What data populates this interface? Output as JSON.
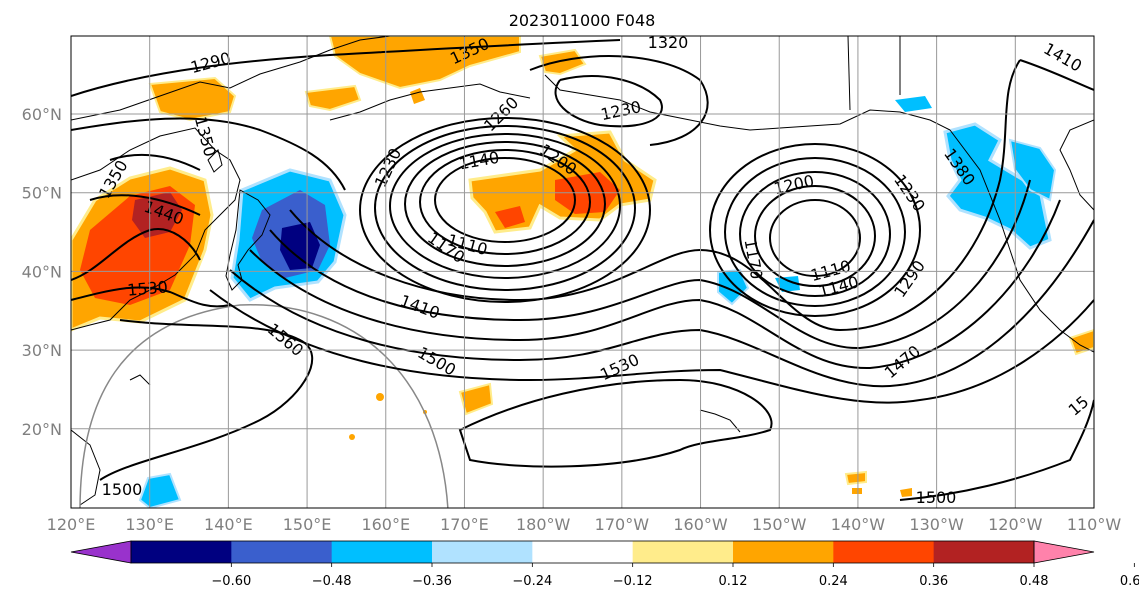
{
  "title": "2023011000 F048",
  "map": {
    "lon_ticks": [
      "120°E",
      "130°E",
      "140°E",
      "150°E",
      "160°E",
      "170°E",
      "180°W",
      "170°W",
      "160°W",
      "150°W",
      "140°W",
      "130°W",
      "120°W",
      "110°W"
    ],
    "lat_ticks": [
      "60°N",
      "50°N",
      "40°N",
      "30°N",
      "20°N"
    ],
    "grid": true,
    "projection": "PlateCarree"
  },
  "colorbar": {
    "colors": [
      "#9932cc",
      "#000080",
      "#3a5fcd",
      "#00bfff",
      "#b0e2ff",
      "#ffffff",
      "#ffec8b",
      "#ffa500",
      "#ff4500",
      "#b22222",
      "#ff82ab"
    ],
    "ticks": [
      "−0.60",
      "−0.48",
      "−0.36",
      "−0.24",
      "−0.12",
      "0.12",
      "0.24",
      "0.36",
      "0.48",
      "0.60"
    ],
    "extend": "both"
  },
  "contour_labels": [
    {
      "text": "1320"
    },
    {
      "text": "1290"
    },
    {
      "text": "1350"
    },
    {
      "text": "1410"
    },
    {
      "text": "1260"
    },
    {
      "text": "1230"
    },
    {
      "text": "1350"
    },
    {
      "text": "1350"
    },
    {
      "text": "1140"
    },
    {
      "text": "1200"
    },
    {
      "text": "1230"
    },
    {
      "text": "1440"
    },
    {
      "text": "1110"
    },
    {
      "text": "1170"
    },
    {
      "text": "1200"
    },
    {
      "text": "1230"
    },
    {
      "text": "1380"
    },
    {
      "text": "1530"
    },
    {
      "text": "1410"
    },
    {
      "text": "1170"
    },
    {
      "text": "1290"
    },
    {
      "text": "1110"
    },
    {
      "text": "1140"
    },
    {
      "text": "1560"
    },
    {
      "text": "1500"
    },
    {
      "text": "1530"
    },
    {
      "text": "1470"
    },
    {
      "text": "1500"
    },
    {
      "text": "1500"
    },
    {
      "text": "15"
    }
  ]
}
